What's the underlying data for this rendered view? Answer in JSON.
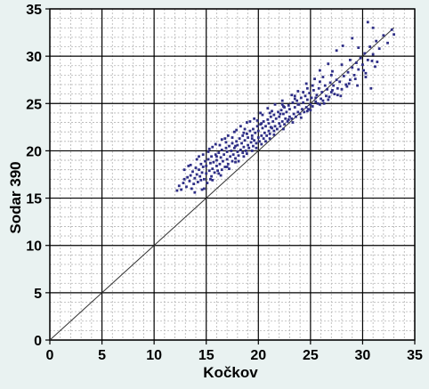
{
  "chart_data": {
    "type": "scatter",
    "title": "",
    "xlabel": "Kočkov",
    "ylabel": "Sodar 390",
    "xlim": [
      0,
      35
    ],
    "ylim": [
      0,
      35
    ],
    "major_ticks": [
      0,
      5,
      10,
      15,
      20,
      25,
      30,
      35
    ],
    "minor_step": 1,
    "grid": true,
    "reference_line": {
      "from": [
        0,
        0
      ],
      "to": [
        33,
        33
      ]
    },
    "point_color": "#2e2e86",
    "series": [
      {
        "points": [
          [
            12.2,
            15.8
          ],
          [
            12.4,
            16.3
          ],
          [
            12.6,
            15.9
          ],
          [
            12.8,
            16.6
          ],
          [
            12.9,
            17.0
          ],
          [
            13.1,
            16.2
          ],
          [
            13.2,
            17.2
          ],
          [
            13.4,
            16.8
          ],
          [
            13.5,
            17.4
          ],
          [
            13.6,
            16.0
          ],
          [
            13.7,
            17.8
          ],
          [
            13.8,
            16.5
          ],
          [
            13.9,
            17.1
          ],
          [
            14.0,
            18.2
          ],
          [
            14.1,
            17.5
          ],
          [
            14.2,
            16.7
          ],
          [
            14.3,
            18.0
          ],
          [
            14.4,
            17.3
          ],
          [
            14.5,
            18.6
          ],
          [
            14.5,
            16.9
          ],
          [
            14.6,
            17.7
          ],
          [
            14.7,
            18.3
          ],
          [
            14.8,
            17.0
          ],
          [
            14.9,
            18.9
          ],
          [
            15.0,
            17.6
          ],
          [
            15.0,
            18.4
          ],
          [
            15.1,
            16.6
          ],
          [
            15.2,
            19.1
          ],
          [
            15.3,
            17.9
          ],
          [
            15.4,
            18.7
          ],
          [
            15.5,
            17.3
          ],
          [
            15.5,
            19.4
          ],
          [
            15.6,
            18.1
          ],
          [
            15.7,
            18.8
          ],
          [
            15.8,
            17.7
          ],
          [
            15.9,
            19.6
          ],
          [
            16.0,
            18.4
          ],
          [
            16.0,
            19.0
          ],
          [
            16.1,
            17.9
          ],
          [
            16.2,
            19.8
          ],
          [
            16.3,
            18.6
          ],
          [
            16.4,
            19.3
          ],
          [
            16.5,
            18.0
          ],
          [
            16.5,
            20.1
          ],
          [
            16.6,
            18.9
          ],
          [
            16.7,
            19.6
          ],
          [
            16.8,
            18.3
          ],
          [
            16.9,
            20.3
          ],
          [
            17.0,
            19.1
          ],
          [
            17.0,
            19.9
          ],
          [
            17.1,
            18.6
          ],
          [
            17.2,
            20.5
          ],
          [
            17.3,
            19.4
          ],
          [
            17.4,
            20.0
          ],
          [
            17.5,
            18.9
          ],
          [
            17.5,
            20.8
          ],
          [
            17.6,
            19.6
          ],
          [
            17.7,
            20.3
          ],
          [
            17.8,
            19.2
          ],
          [
            17.9,
            21.0
          ],
          [
            18.0,
            19.9
          ],
          [
            18.0,
            20.6
          ],
          [
            18.1,
            19.5
          ],
          [
            18.2,
            21.3
          ],
          [
            18.3,
            20.1
          ],
          [
            18.4,
            20.8
          ],
          [
            18.5,
            19.8
          ],
          [
            18.5,
            21.6
          ],
          [
            18.6,
            20.4
          ],
          [
            18.7,
            21.1
          ],
          [
            18.8,
            20.0
          ],
          [
            18.9,
            21.8
          ],
          [
            19.0,
            20.6
          ],
          [
            19.0,
            21.4
          ],
          [
            19.1,
            20.3
          ],
          [
            19.2,
            22.1
          ],
          [
            19.3,
            20.9
          ],
          [
            19.4,
            21.6
          ],
          [
            19.5,
            20.5
          ],
          [
            19.5,
            22.3
          ],
          [
            19.6,
            21.1
          ],
          [
            19.7,
            21.9
          ],
          [
            19.8,
            20.8
          ],
          [
            19.9,
            22.6
          ],
          [
            20.0,
            21.4
          ],
          [
            20.0,
            22.1
          ],
          [
            20.1,
            21.0
          ],
          [
            20.2,
            22.8
          ],
          [
            20.3,
            21.6
          ],
          [
            20.4,
            22.4
          ],
          [
            20.5,
            21.3
          ],
          [
            20.5,
            23.1
          ],
          [
            20.6,
            21.9
          ],
          [
            20.7,
            22.6
          ],
          [
            20.8,
            21.6
          ],
          [
            20.9,
            23.3
          ],
          [
            21.0,
            22.1
          ],
          [
            21.0,
            22.9
          ],
          [
            21.1,
            21.8
          ],
          [
            21.2,
            23.6
          ],
          [
            21.3,
            22.4
          ],
          [
            21.4,
            23.1
          ],
          [
            21.5,
            22.1
          ],
          [
            21.5,
            23.8
          ],
          [
            21.6,
            22.6
          ],
          [
            21.7,
            23.4
          ],
          [
            21.8,
            22.3
          ],
          [
            21.9,
            24.1
          ],
          [
            22.0,
            22.9
          ],
          [
            22.0,
            23.6
          ],
          [
            22.1,
            22.6
          ],
          [
            22.2,
            24.3
          ],
          [
            22.3,
            23.1
          ],
          [
            22.4,
            23.9
          ],
          [
            22.5,
            22.8
          ],
          [
            22.5,
            24.6
          ],
          [
            22.6,
            23.4
          ],
          [
            22.7,
            24.1
          ],
          [
            22.8,
            23.1
          ],
          [
            22.9,
            24.8
          ],
          [
            23.0,
            23.6
          ],
          [
            23.0,
            24.4
          ],
          [
            23.2,
            23.4
          ],
          [
            23.3,
            25.1
          ],
          [
            23.4,
            23.9
          ],
          [
            23.5,
            24.6
          ],
          [
            23.6,
            23.6
          ],
          [
            23.7,
            25.3
          ],
          [
            23.8,
            24.1
          ],
          [
            23.9,
            24.9
          ],
          [
            24.0,
            23.9
          ],
          [
            24.1,
            25.6
          ],
          [
            24.2,
            24.4
          ],
          [
            24.3,
            25.1
          ],
          [
            24.4,
            24.1
          ],
          [
            24.5,
            25.8
          ],
          [
            24.6,
            24.6
          ],
          [
            24.7,
            25.4
          ],
          [
            24.8,
            24.4
          ],
          [
            24.9,
            26.1
          ],
          [
            25.0,
            24.9
          ],
          [
            25.1,
            25.6
          ],
          [
            25.2,
            24.7
          ],
          [
            25.3,
            26.4
          ],
          [
            25.5,
            25.2
          ],
          [
            25.6,
            25.9
          ],
          [
            25.7,
            25.0
          ],
          [
            25.8,
            26.6
          ],
          [
            26.0,
            25.5
          ],
          [
            26.1,
            26.2
          ],
          [
            26.2,
            25.3
          ],
          [
            26.4,
            26.9
          ],
          [
            26.5,
            25.8
          ],
          [
            26.6,
            26.5
          ],
          [
            26.8,
            25.7
          ],
          [
            26.9,
            27.2
          ],
          [
            27.0,
            26.2
          ],
          [
            27.2,
            26.9
          ],
          [
            27.3,
            26.0
          ],
          [
            27.5,
            27.5
          ],
          [
            27.6,
            26.6
          ],
          [
            27.8,
            27.3
          ],
          [
            28.0,
            26.5
          ],
          [
            28.2,
            27.9
          ],
          [
            28.4,
            27.0
          ],
          [
            28.6,
            28.3
          ],
          [
            28.8,
            27.5
          ],
          [
            29.0,
            28.8
          ],
          [
            29.2,
            28.0
          ],
          [
            29.4,
            29.3
          ],
          [
            29.6,
            28.6
          ],
          [
            29.8,
            29.8
          ],
          [
            30.0,
            29.1
          ],
          [
            30.2,
            30.3
          ],
          [
            30.5,
            29.6
          ],
          [
            30.7,
            31.0
          ],
          [
            31.0,
            30.2
          ],
          [
            31.3,
            31.6
          ],
          [
            31.6,
            30.8
          ],
          [
            32.0,
            32.2
          ],
          [
            32.4,
            31.4
          ],
          [
            32.8,
            32.8
          ],
          [
            33.0,
            32.3
          ],
          [
            29.0,
            31.9
          ],
          [
            30.5,
            33.6
          ],
          [
            31.0,
            33.0
          ],
          [
            28.1,
            31.1
          ],
          [
            27.5,
            30.6
          ],
          [
            29.6,
            30.9
          ],
          [
            30.8,
            26.6
          ],
          [
            30.3,
            28.2
          ],
          [
            31.4,
            29.4
          ],
          [
            28.8,
            29.6
          ],
          [
            26.7,
            29.2
          ],
          [
            25.9,
            28.5
          ],
          [
            25.4,
            27.6
          ],
          [
            24.6,
            27.1
          ],
          [
            23.8,
            26.3
          ],
          [
            23.2,
            25.9
          ],
          [
            22.3,
            25.3
          ],
          [
            21.6,
            24.9
          ],
          [
            20.9,
            24.5
          ],
          [
            20.2,
            24.0
          ],
          [
            19.6,
            23.4
          ],
          [
            18.9,
            23.0
          ],
          [
            18.3,
            22.6
          ],
          [
            17.7,
            22.0
          ],
          [
            17.1,
            21.6
          ],
          [
            16.5,
            21.2
          ],
          [
            15.9,
            20.7
          ],
          [
            15.3,
            20.2
          ],
          [
            14.7,
            19.6
          ],
          [
            14.1,
            19.1
          ],
          [
            13.5,
            18.5
          ],
          [
            12.9,
            18.0
          ],
          [
            13.3,
            18.4
          ],
          [
            14.3,
            19.4
          ],
          [
            15.6,
            20.4
          ],
          [
            16.8,
            21.3
          ],
          [
            17.9,
            22.2
          ],
          [
            19.2,
            23.1
          ],
          [
            20.4,
            23.8
          ],
          [
            21.3,
            24.2
          ],
          [
            22.4,
            24.7
          ],
          [
            23.5,
            25.5
          ],
          [
            24.3,
            26.2
          ],
          [
            25.2,
            26.9
          ],
          [
            26.2,
            27.8
          ],
          [
            27.1,
            28.4
          ],
          [
            28.0,
            29.1
          ],
          [
            14.8,
            16.0
          ],
          [
            15.6,
            16.9
          ],
          [
            16.4,
            17.4
          ],
          [
            17.2,
            18.1
          ],
          [
            18.1,
            18.9
          ],
          [
            18.9,
            19.7
          ],
          [
            19.8,
            20.3
          ],
          [
            20.7,
            21.0
          ],
          [
            21.5,
            21.7
          ],
          [
            22.4,
            22.3
          ],
          [
            23.3,
            23.0
          ],
          [
            24.1,
            23.5
          ],
          [
            25.0,
            24.3
          ],
          [
            25.9,
            24.9
          ],
          [
            26.7,
            25.4
          ],
          [
            27.6,
            25.9
          ],
          [
            28.5,
            26.8
          ],
          [
            29.3,
            27.6
          ],
          [
            30.1,
            28.5
          ],
          [
            30.9,
            29.5
          ],
          [
            13.9,
            15.6
          ],
          [
            14.6,
            15.9
          ],
          [
            15.4,
            17.0
          ],
          [
            16.2,
            17.6
          ],
          [
            17.0,
            18.3
          ],
          [
            17.8,
            18.8
          ],
          [
            18.6,
            19.4
          ],
          [
            19.4,
            20.0
          ],
          [
            20.3,
            20.7
          ],
          [
            21.1,
            21.3
          ],
          [
            16.3,
            20.6
          ],
          [
            17.5,
            21.4
          ],
          [
            18.7,
            22.3
          ],
          [
            19.9,
            23.2
          ],
          [
            21.1,
            24.0
          ],
          [
            22.3,
            24.9
          ],
          [
            23.5,
            25.8
          ],
          [
            24.7,
            26.6
          ],
          [
            25.9,
            27.3
          ],
          [
            27.0,
            28.0
          ],
          [
            15.2,
            19.9
          ],
          [
            16.0,
            19.4
          ],
          [
            16.9,
            20.9
          ],
          [
            17.8,
            20.5
          ],
          [
            18.6,
            21.9
          ],
          [
            19.4,
            21.3
          ],
          [
            20.3,
            22.9
          ],
          [
            21.2,
            22.5
          ],
          [
            22.1,
            23.9
          ],
          [
            22.9,
            23.3
          ],
          [
            23.8,
            24.9
          ],
          [
            24.7,
            24.2
          ],
          [
            25.5,
            25.6
          ],
          [
            26.3,
            25.0
          ],
          [
            27.1,
            26.4
          ],
          [
            27.9,
            25.8
          ],
          [
            28.7,
            27.1
          ],
          [
            29.5,
            26.9
          ],
          [
            30.3,
            27.8
          ],
          [
            31.2,
            28.9
          ]
        ]
      }
    ]
  }
}
